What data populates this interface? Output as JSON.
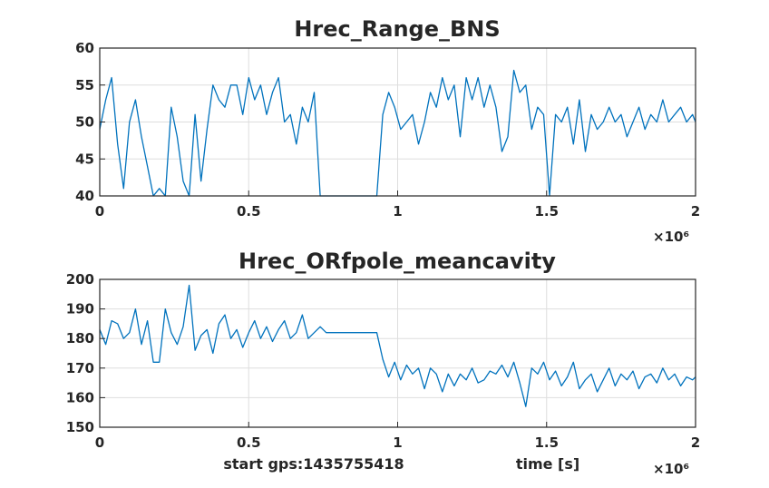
{
  "chart_data": [
    {
      "type": "line",
      "title": "Hrec_Range_BNS",
      "xlabel": "",
      "ylabel": "",
      "xlim": [
        0,
        2000000
      ],
      "ylim": [
        40,
        60
      ],
      "x_ticks": [
        "0",
        "0.5",
        "1",
        "1.5",
        "2"
      ],
      "x_tick_values": [
        0,
        500000,
        1000000,
        1500000,
        2000000
      ],
      "y_ticks": [
        "40",
        "45",
        "50",
        "55",
        "60"
      ],
      "y_tick_values": [
        40,
        45,
        50,
        55,
        60
      ],
      "x_exponent": "×10⁶",
      "grid": true,
      "color": "#0072BD",
      "series": [
        {
          "x": [
            0,
            20000,
            40000,
            60000,
            80000,
            100000,
            120000,
            140000,
            160000,
            180000,
            200000,
            220000,
            240000,
            260000,
            280000,
            300000,
            320000,
            340000,
            360000,
            380000,
            400000,
            420000,
            440000,
            460000,
            480000,
            500000,
            520000,
            540000,
            560000,
            580000,
            600000,
            620000,
            640000,
            660000,
            680000,
            700000,
            720000,
            740000,
            760000,
            800000,
            850000,
            900000,
            930000,
            950000,
            970000,
            990000,
            1010000,
            1030000,
            1050000,
            1070000,
            1090000,
            1110000,
            1130000,
            1150000,
            1170000,
            1190000,
            1210000,
            1230000,
            1250000,
            1270000,
            1290000,
            1310000,
            1330000,
            1350000,
            1370000,
            1390000,
            1410000,
            1430000,
            1450000,
            1470000,
            1490000,
            1510000,
            1530000,
            1550000,
            1570000,
            1590000,
            1610000,
            1630000,
            1650000,
            1670000,
            1690000,
            1710000,
            1730000,
            1750000,
            1770000,
            1790000,
            1810000,
            1830000,
            1850000,
            1870000,
            1890000,
            1910000,
            1930000,
            1950000,
            1970000,
            1990000,
            2000000
          ],
          "y": [
            49,
            53,
            56,
            47,
            41,
            50,
            53,
            48,
            44,
            40,
            41,
            40,
            52,
            48,
            42,
            40,
            51,
            42,
            49,
            55,
            53,
            52,
            55,
            55,
            51,
            56,
            53,
            55,
            51,
            54,
            56,
            50,
            51,
            47,
            52,
            50,
            54,
            40,
            40,
            40,
            40,
            40,
            40,
            51,
            54,
            52,
            49,
            50,
            51,
            47,
            50,
            54,
            52,
            56,
            53,
            55,
            48,
            56,
            53,
            56,
            52,
            55,
            52,
            46,
            48,
            57,
            54,
            55,
            49,
            52,
            51,
            40,
            51,
            50,
            52,
            47,
            53,
            46,
            51,
            49,
            50,
            52,
            50,
            51,
            48,
            50,
            52,
            49,
            51,
            50,
            53,
            50,
            51,
            52,
            50,
            51,
            50
          ]
        }
      ]
    },
    {
      "type": "line",
      "title": "Hrec_ORfpole_meancavity",
      "xlabel": "time [s]",
      "annotation": "start gps:1435755418",
      "ylabel": "",
      "xlim": [
        0,
        2000000
      ],
      "ylim": [
        150,
        200
      ],
      "x_ticks": [
        "0",
        "0.5",
        "1",
        "1.5",
        "2"
      ],
      "x_tick_values": [
        0,
        500000,
        1000000,
        1500000,
        2000000
      ],
      "y_ticks": [
        "150",
        "160",
        "170",
        "180",
        "190",
        "200"
      ],
      "y_tick_values": [
        150,
        160,
        170,
        180,
        190,
        200
      ],
      "x_exponent": "×10⁶",
      "grid": true,
      "color": "#0072BD",
      "series": [
        {
          "x": [
            0,
            20000,
            40000,
            60000,
            80000,
            100000,
            120000,
            140000,
            160000,
            180000,
            200000,
            220000,
            240000,
            260000,
            280000,
            300000,
            320000,
            340000,
            360000,
            380000,
            400000,
            420000,
            440000,
            460000,
            480000,
            500000,
            520000,
            540000,
            560000,
            580000,
            600000,
            620000,
            640000,
            660000,
            680000,
            700000,
            720000,
            740000,
            760000,
            800000,
            850000,
            900000,
            930000,
            950000,
            970000,
            990000,
            1010000,
            1030000,
            1050000,
            1070000,
            1090000,
            1110000,
            1130000,
            1150000,
            1170000,
            1190000,
            1210000,
            1230000,
            1250000,
            1270000,
            1290000,
            1310000,
            1330000,
            1350000,
            1370000,
            1390000,
            1410000,
            1430000,
            1450000,
            1470000,
            1490000,
            1510000,
            1530000,
            1550000,
            1570000,
            1590000,
            1610000,
            1630000,
            1650000,
            1670000,
            1690000,
            1710000,
            1730000,
            1750000,
            1770000,
            1790000,
            1810000,
            1830000,
            1850000,
            1870000,
            1890000,
            1910000,
            1930000,
            1950000,
            1970000,
            1990000,
            2000000
          ],
          "y": [
            183,
            178,
            186,
            185,
            180,
            182,
            190,
            178,
            186,
            172,
            172,
            190,
            182,
            178,
            184,
            198,
            176,
            181,
            183,
            175,
            185,
            188,
            180,
            183,
            177,
            182,
            186,
            180,
            184,
            179,
            183,
            186,
            180,
            182,
            188,
            180,
            182,
            184,
            182,
            182,
            182,
            182,
            182,
            173,
            167,
            172,
            166,
            171,
            168,
            170,
            163,
            170,
            168,
            162,
            168,
            164,
            168,
            166,
            170,
            165,
            166,
            169,
            168,
            171,
            167,
            172,
            165,
            157,
            170,
            168,
            172,
            166,
            169,
            164,
            167,
            172,
            163,
            166,
            168,
            162,
            166,
            170,
            164,
            168,
            166,
            169,
            163,
            167,
            168,
            165,
            170,
            166,
            168,
            164,
            167,
            166,
            167
          ]
        }
      ]
    }
  ]
}
